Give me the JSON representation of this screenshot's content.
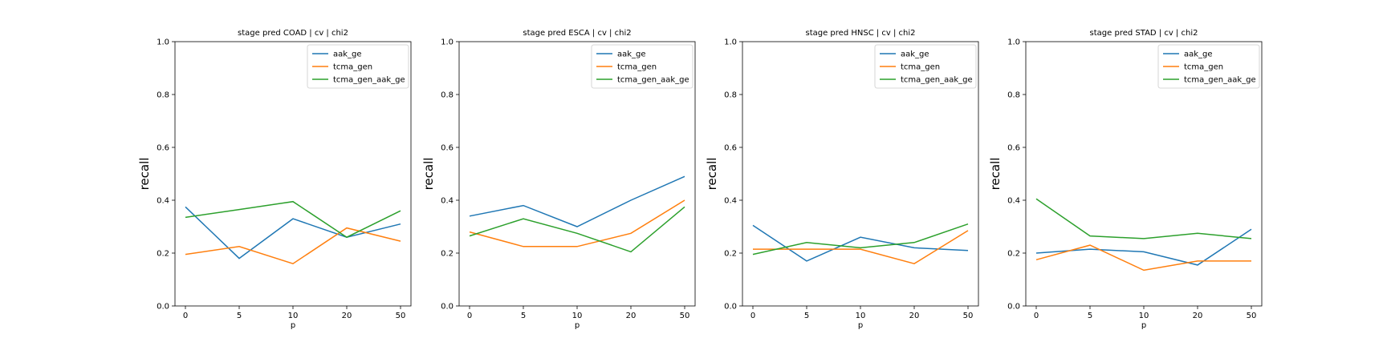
{
  "chart_data": [
    {
      "type": "line",
      "title": "stage pred COAD | cv | chi2",
      "xlabel": "p",
      "ylabel": "recall",
      "categories": [
        "0",
        "5",
        "10",
        "20",
        "50"
      ],
      "ylim": [
        0,
        1
      ],
      "yticks": [
        "0.0",
        "0.2",
        "0.4",
        "0.6",
        "0.8",
        "1.0"
      ],
      "legend": "top-right",
      "series": [
        {
          "name": "aak_ge",
          "color": "#1f77b4",
          "values": [
            0.375,
            0.18,
            0.33,
            0.26,
            0.31
          ]
        },
        {
          "name": "tcma_gen",
          "color": "#ff7f0e",
          "values": [
            0.195,
            0.225,
            0.16,
            0.295,
            0.245
          ]
        },
        {
          "name": "tcma_gen_aak_ge",
          "color": "#2ca02c",
          "values": [
            0.335,
            0.365,
            0.395,
            0.26,
            0.36
          ]
        }
      ]
    },
    {
      "type": "line",
      "title": "stage pred ESCA | cv | chi2",
      "xlabel": "p",
      "ylabel": "recall",
      "categories": [
        "0",
        "5",
        "10",
        "20",
        "50"
      ],
      "ylim": [
        0,
        1
      ],
      "yticks": [
        "0.0",
        "0.2",
        "0.4",
        "0.6",
        "0.8",
        "1.0"
      ],
      "legend": "top-right",
      "series": [
        {
          "name": "aak_ge",
          "color": "#1f77b4",
          "values": [
            0.34,
            0.38,
            0.3,
            0.4,
            0.49
          ]
        },
        {
          "name": "tcma_gen",
          "color": "#ff7f0e",
          "values": [
            0.28,
            0.225,
            0.225,
            0.275,
            0.4
          ]
        },
        {
          "name": "tcma_gen_aak_ge",
          "color": "#2ca02c",
          "values": [
            0.265,
            0.33,
            0.275,
            0.205,
            0.375
          ]
        }
      ]
    },
    {
      "type": "line",
      "title": "stage pred HNSC | cv | chi2",
      "xlabel": "p",
      "ylabel": "recall",
      "categories": [
        "0",
        "5",
        "10",
        "20",
        "50"
      ],
      "ylim": [
        0,
        1
      ],
      "yticks": [
        "0.0",
        "0.2",
        "0.4",
        "0.6",
        "0.8",
        "1.0"
      ],
      "legend": "top-right",
      "series": [
        {
          "name": "aak_ge",
          "color": "#1f77b4",
          "values": [
            0.305,
            0.17,
            0.26,
            0.22,
            0.21
          ]
        },
        {
          "name": "tcma_gen",
          "color": "#ff7f0e",
          "values": [
            0.215,
            0.215,
            0.215,
            0.16,
            0.285
          ]
        },
        {
          "name": "tcma_gen_aak_ge",
          "color": "#2ca02c",
          "values": [
            0.195,
            0.24,
            0.22,
            0.24,
            0.31
          ]
        }
      ]
    },
    {
      "type": "line",
      "title": "stage pred STAD | cv | chi2",
      "xlabel": "p",
      "ylabel": "recall",
      "categories": [
        "0",
        "5",
        "10",
        "20",
        "50"
      ],
      "ylim": [
        0,
        1
      ],
      "yticks": [
        "0.0",
        "0.2",
        "0.4",
        "0.6",
        "0.8",
        "1.0"
      ],
      "legend": "top-right",
      "series": [
        {
          "name": "aak_ge",
          "color": "#1f77b4",
          "values": [
            0.2,
            0.215,
            0.205,
            0.155,
            0.29
          ]
        },
        {
          "name": "tcma_gen",
          "color": "#ff7f0e",
          "values": [
            0.175,
            0.23,
            0.135,
            0.17,
            0.17
          ]
        },
        {
          "name": "tcma_gen_aak_ge",
          "color": "#2ca02c",
          "values": [
            0.405,
            0.265,
            0.255,
            0.275,
            0.255
          ]
        }
      ]
    }
  ]
}
